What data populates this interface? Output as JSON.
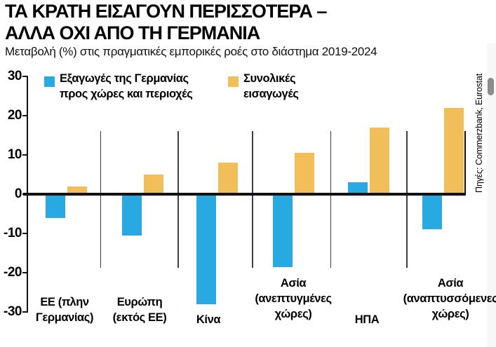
{
  "header": {
    "title_line1": "ΤΑ ΚΡΑΤΗ ΕΙΣΑΓΟΥΝ ΠΕΡΙΣΣΟΤΕΡΑ –",
    "title_line2": "ΑΛΛΑ ΟΧΙ ΑΠΟ ΤΗ ΓΕΡΜΑΝΙΑ",
    "subtitle": "Μεταβολή (%) στις πραγματικές εμπορικές ροές στο διάστημα 2019-2024"
  },
  "legend": {
    "exports": {
      "line1": "Εξαγωγές της Γερμανίας",
      "line2": "προς χώρες και περιοχές"
    },
    "imports": {
      "line1": "Συνολικές",
      "line2": "εισαγωγές"
    }
  },
  "source": {
    "text": "Πηγές: Commerzbank, Eurostat"
  },
  "colors": {
    "blue": "#29A9E1",
    "orange": "#F1BE59",
    "axis": "#111111",
    "separator": "#3d3d3d",
    "scroll_thumb": "#8b8b8b"
  },
  "chart_data": {
    "type": "bar",
    "title": "ΤΑ ΚΡΑΤΗ ΕΙΣΑΓΟΥΝ ΠΕΡΙΣΣΟΤΕΡΑ – ΑΛΛΑ ΟΧΙ ΑΠΟ ΤΗ ΓΕΡΜΑΝΙΑ",
    "subtitle": "Μεταβολή (%) στις πραγματικές εμπορικές ροές στο διάστημα 2019-2024",
    "categories": [
      "ΕΕ (πλην Γερμανίας)",
      "Ευρώπη (εκτός ΕΕ)",
      "Κίνα",
      "Ασία (ανεπτυγμένες χώρες)",
      "ΗΠΑ",
      "Ασία (αναπτυσσόμενες χώρες)"
    ],
    "category_lines": [
      [
        "ΕΕ (πλην",
        "Γερμανίας)"
      ],
      [
        "Ευρώπη",
        "(εκτός ΕΕ)"
      ],
      [
        "Κίνα"
      ],
      [
        "Ασία",
        "(ανεπτυγμένες",
        "χώρες)"
      ],
      [
        "ΗΠΑ"
      ],
      [
        "Ασία",
        "(αναπτυσσόμενες",
        "χώρες)"
      ]
    ],
    "series": [
      {
        "name": "Εξαγωγές της Γερμανίας προς χώρες και περιοχές",
        "color": "#29A9E1",
        "values": [
          -6,
          -10.5,
          -28,
          -18.5,
          3,
          -9
        ]
      },
      {
        "name": "Συνολικές εισαγωγές",
        "color": "#F1BE59",
        "values": [
          2,
          5,
          8,
          10.5,
          17,
          22
        ]
      }
    ],
    "xlabel": "",
    "ylabel": "",
    "ylim": [
      -30,
      30
    ],
    "yticks": [
      30,
      20,
      10,
      0,
      -10,
      -20,
      -30
    ],
    "grid": false,
    "legend_position": "inside-top-left",
    "source": "Πηγές: Commerzbank, Eurostat"
  }
}
